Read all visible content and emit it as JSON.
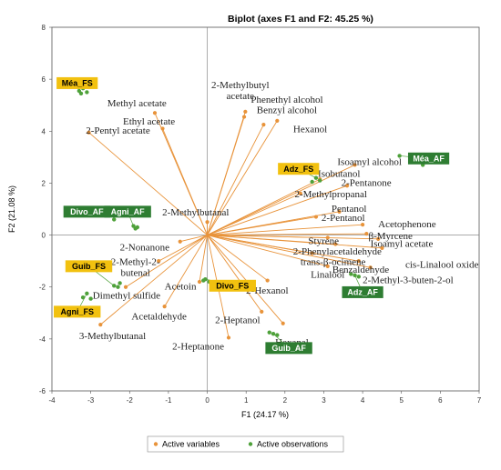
{
  "chart_data": {
    "type": "scatter",
    "title": "Biplot (axes F1 and F2: 45.25 %)",
    "xlabel": "F1 (24.17 %)",
    "ylabel": "F2 (21.08 %)",
    "xlim": [
      -4,
      7
    ],
    "ylim": [
      -6,
      8
    ],
    "xticks": [
      "-4",
      "-3",
      "-2",
      "-1",
      "0",
      "1",
      "2",
      "3",
      "4",
      "5",
      "6",
      "7"
    ],
    "yticks": [
      "-6",
      "-4",
      "-2",
      "0",
      "2",
      "4",
      "6",
      "8"
    ],
    "grid": false,
    "legend": {
      "placement": "bottom",
      "entries": [
        "Active variables",
        "Active observations"
      ]
    },
    "colors": {
      "variables": "#e8933a",
      "observations": "#4ea13a",
      "fs_box": "#f2c10f",
      "af_box": "#2e7d32"
    },
    "variables": [
      {
        "name": "2-Methylbutyl acetate",
        "x": 0.98,
        "y": 4.75
      },
      {
        "name": "Methyl acetate",
        "x": -1.35,
        "y": 4.7
      },
      {
        "name": "Phenethyl alcohol",
        "x": 0.95,
        "y": 4.55
      },
      {
        "name": "Ethyl acetate",
        "x": -1.15,
        "y": 4.1
      },
      {
        "name": "Benzyl alcohol",
        "x": 1.45,
        "y": 4.25
      },
      {
        "name": "Hexanol",
        "x": 1.8,
        "y": 4.4
      },
      {
        "name": "2-Pentyl acetate",
        "x": -3.05,
        "y": 3.95
      },
      {
        "name": "Isoamyl alcohol",
        "x": 3.8,
        "y": 2.7
      },
      {
        "name": "Isobutanol",
        "x": 2.9,
        "y": 2.15
      },
      {
        "name": "2-Pentanone",
        "x": 3.6,
        "y": 1.9
      },
      {
        "name": "2-Methylpropanal",
        "x": 2.4,
        "y": 1.6
      },
      {
        "name": "2-Methylbutanal",
        "x": 0.0,
        "y": 0.5
      },
      {
        "name": "Pentanol",
        "x": 3.4,
        "y": 0.9
      },
      {
        "name": "2-Pentanol",
        "x": 2.8,
        "y": 0.7
      },
      {
        "name": "Acetophenone",
        "x": 4.0,
        "y": 0.4
      },
      {
        "name": "β-Myrcene",
        "x": 4.1,
        "y": 0.05
      },
      {
        "name": "Isoamyl acetate",
        "x": 4.4,
        "y": -0.15
      },
      {
        "name": "Styrene",
        "x": 3.1,
        "y": -0.1
      },
      {
        "name": "2-Phenylacetaldehyde",
        "x": 3.3,
        "y": -0.35
      },
      {
        "name": "trans-β-ocimene",
        "x": 2.7,
        "y": -0.7
      },
      {
        "name": "Benzaldehyde",
        "x": 3.9,
        "y": -1.0
      },
      {
        "name": "2-Methyl-3-buten-2-ol",
        "x": 4.2,
        "y": -1.25
      },
      {
        "name": "cis-Linalool oxide",
        "x": 4.5,
        "y": -0.5
      },
      {
        "name": "Linalool",
        "x": 3.1,
        "y": -1.2
      },
      {
        "name": "2-Nonanone",
        "x": -0.7,
        "y": -0.25
      },
      {
        "name": "2-Methyl-2-butenal",
        "x": -1.25,
        "y": -1.0
      },
      {
        "name": "Acetoin",
        "x": -0.2,
        "y": -1.8
      },
      {
        "name": "Dimethyl sulfide",
        "x": -2.1,
        "y": -2.0
      },
      {
        "name": "2-Hexanol",
        "x": 1.55,
        "y": -1.75
      },
      {
        "name": "Acetaldehyde",
        "x": -1.1,
        "y": -2.75
      },
      {
        "name": "2-Heptanol",
        "x": 1.4,
        "y": -2.95
      },
      {
        "name": "Hexanal",
        "x": 1.95,
        "y": -3.4
      },
      {
        "name": "3-Methylbutanal",
        "x": -2.75,
        "y": -3.45
      },
      {
        "name": "2-Heptanone",
        "x": 0.55,
        "y": -3.95
      }
    ],
    "observations": [
      {
        "name": "Méa_FS",
        "points": [
          [
            -3.3,
            5.55
          ],
          [
            -3.2,
            5.65
          ],
          [
            -3.1,
            5.5
          ],
          [
            -3.25,
            5.45
          ]
        ]
      },
      {
        "name": "Méa_AF",
        "points": [
          [
            4.95,
            3.05
          ],
          [
            5.4,
            2.95
          ],
          [
            5.55,
            2.7
          ]
        ]
      },
      {
        "name": "Adz_FS",
        "points": [
          [
            2.8,
            2.2
          ],
          [
            2.9,
            2.1
          ],
          [
            2.7,
            2.05
          ]
        ]
      },
      {
        "name": "Adz_AF",
        "points": [
          [
            3.8,
            -1.55
          ],
          [
            3.9,
            -1.6
          ],
          [
            3.7,
            -1.5
          ]
        ]
      },
      {
        "name": "Divo_AF",
        "points": [
          [
            -2.5,
            0.8
          ],
          [
            -2.3,
            0.9
          ],
          [
            -2.4,
            0.6
          ]
        ]
      },
      {
        "name": "Agni_AF",
        "points": [
          [
            -1.9,
            0.35
          ],
          [
            -1.8,
            0.3
          ],
          [
            -1.85,
            0.25
          ]
        ]
      },
      {
        "name": "Guib_FS",
        "points": [
          [
            -2.4,
            -1.95
          ],
          [
            -2.25,
            -1.85
          ],
          [
            -2.3,
            -2.0
          ]
        ]
      },
      {
        "name": "Divo_FS",
        "points": [
          [
            -0.05,
            -1.7
          ],
          [
            0.05,
            -1.8
          ],
          [
            -0.1,
            -1.75
          ]
        ]
      },
      {
        "name": "Agni_FS",
        "points": [
          [
            -3.1,
            -2.25
          ],
          [
            -3.0,
            -2.45
          ],
          [
            -3.2,
            -2.4
          ]
        ]
      },
      {
        "name": "Guib_AF",
        "points": [
          [
            1.7,
            -3.8
          ],
          [
            1.8,
            -3.85
          ],
          [
            1.6,
            -3.75
          ]
        ]
      }
    ]
  }
}
